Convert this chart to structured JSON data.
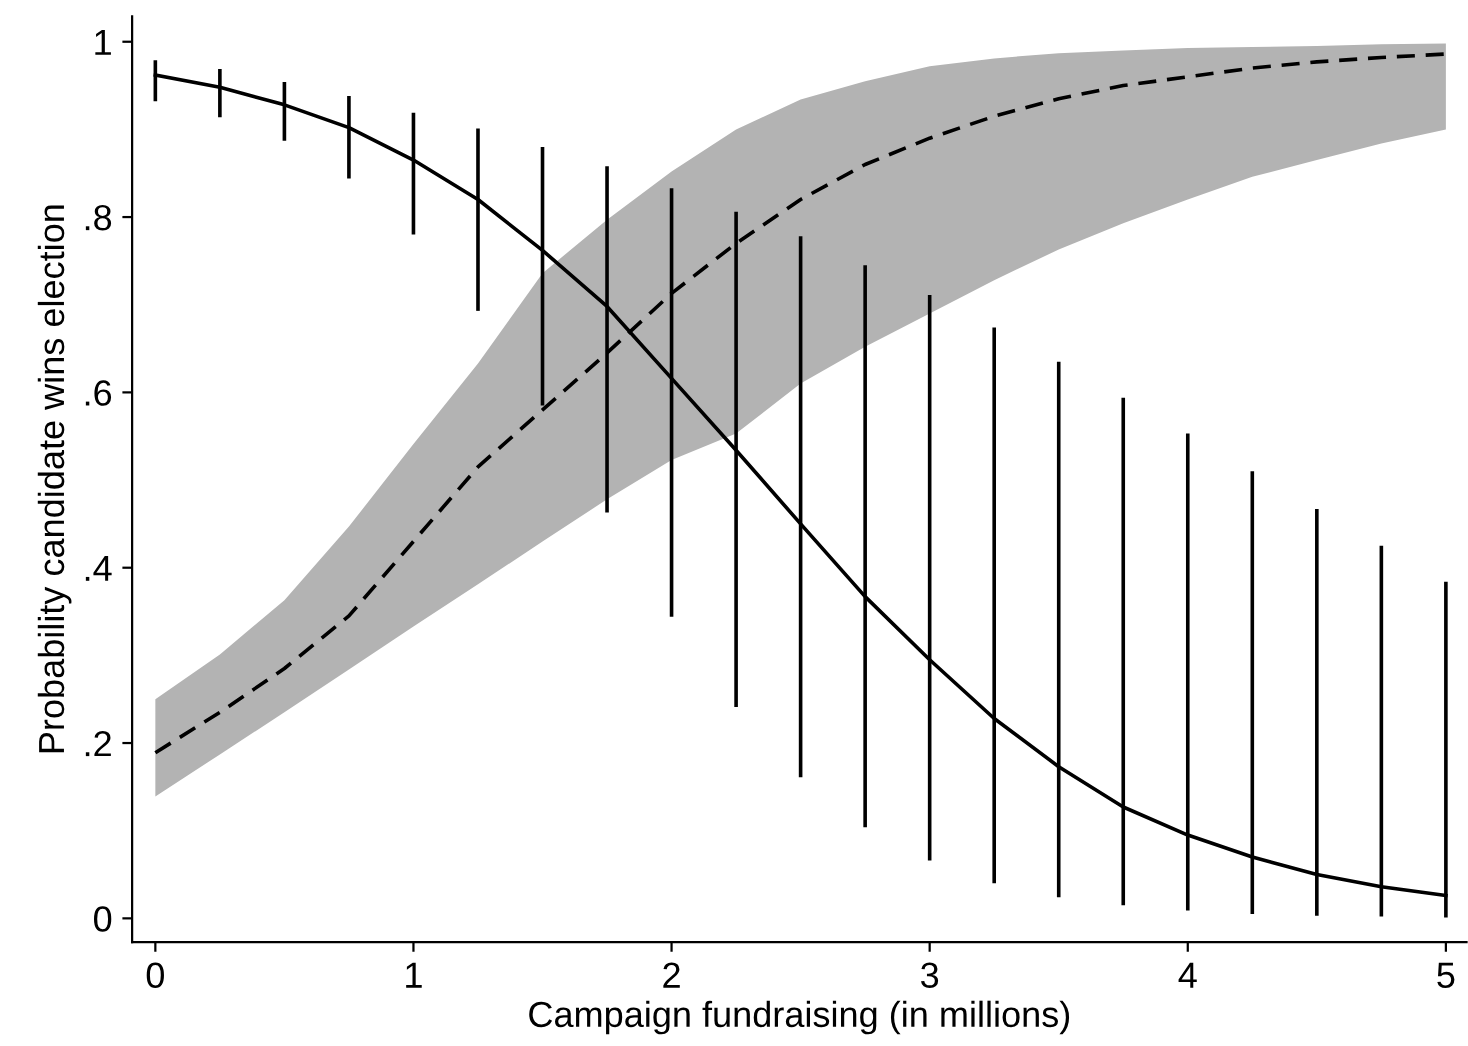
{
  "chart_data": {
    "type": "line",
    "xlabel": "Campaign fundraising (in millions)",
    "ylabel": "Probability candidate wins election",
    "x": [
      0,
      0.25,
      0.5,
      0.75,
      1,
      1.25,
      1.5,
      1.75,
      2,
      2.25,
      2.5,
      2.75,
      3,
      3.25,
      3.5,
      3.75,
      4,
      4.25,
      4.5,
      4.75,
      5
    ],
    "series": [
      {
        "color": "#000000",
        "line_style": "solid",
        "values": [
          0.962,
          0.948,
          0.928,
          0.902,
          0.865,
          0.82,
          0.762,
          0.698,
          0.616,
          0.534,
          0.45,
          0.367,
          0.295,
          0.228,
          0.173,
          0.127,
          0.095,
          0.07,
          0.05,
          0.036,
          0.026
        ],
        "errors": [
          [
            0.932,
            0.979
          ],
          [
            0.914,
            0.969
          ],
          [
            0.887,
            0.954
          ],
          [
            0.844,
            0.938
          ],
          [
            0.78,
            0.919
          ],
          [
            0.693,
            0.901
          ],
          [
            0.585,
            0.88
          ],
          [
            0.463,
            0.858
          ],
          [
            0.344,
            0.833
          ],
          [
            0.241,
            0.806
          ],
          [
            0.161,
            0.778
          ],
          [
            0.104,
            0.745
          ],
          [
            0.066,
            0.711
          ],
          [
            0.04,
            0.674
          ],
          [
            0.024,
            0.635
          ],
          [
            0.015,
            0.594
          ],
          [
            0.009,
            0.553
          ],
          [
            0.005,
            0.51
          ],
          [
            0.003,
            0.467
          ],
          [
            0.002,
            0.425
          ],
          [
            0.001,
            0.384
          ]
        ]
      },
      {
        "color": "#000000",
        "line_style": "dashed",
        "values": [
          0.189,
          0.235,
          0.285,
          0.345,
          0.43,
          0.515,
          0.58,
          0.645,
          0.713,
          0.77,
          0.82,
          0.86,
          0.89,
          0.915,
          0.935,
          0.95,
          0.96,
          0.97,
          0.977,
          0.982,
          0.986
        ],
        "lower": [
          0.139,
          0.187,
          0.235,
          0.284,
          0.333,
          0.381,
          0.43,
          0.478,
          0.523,
          0.553,
          0.61,
          0.652,
          0.69,
          0.728,
          0.763,
          0.793,
          0.82,
          0.846,
          0.865,
          0.884,
          0.9
        ],
        "upper": [
          0.25,
          0.301,
          0.363,
          0.447,
          0.541,
          0.633,
          0.736,
          0.797,
          0.852,
          0.9,
          0.934,
          0.955,
          0.972,
          0.981,
          0.987,
          0.99,
          0.993,
          0.994,
          0.995,
          0.997,
          0.998
        ]
      }
    ],
    "xlim": [
      -0.09,
      5.08
    ],
    "xticks": [
      0,
      1,
      2,
      3,
      4,
      5
    ],
    "ylim": [
      -0.027,
      1.029
    ],
    "yticks": [
      0,
      {
        "value": 0.2,
        "label": ".2"
      },
      {
        "value": 0.4,
        "label": ".4"
      },
      {
        "value": 0.6,
        "label": ".6"
      },
      {
        "value": 0.8,
        "label": ".8"
      },
      1
    ],
    "grid": false,
    "legend": false
  }
}
